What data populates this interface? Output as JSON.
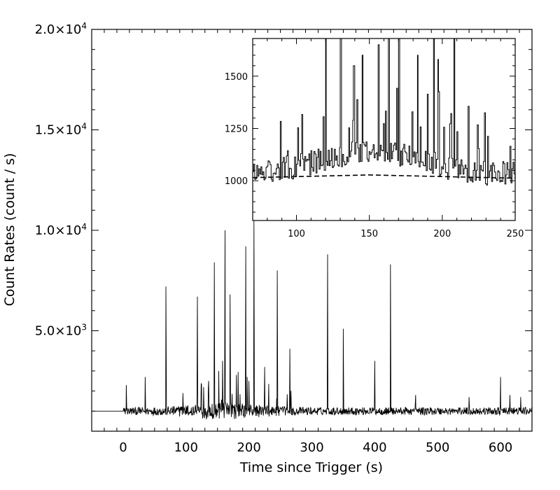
{
  "chart_data": [
    {
      "type": "line",
      "xlabel": "Time since Trigger (s)",
      "ylabel": "Count Rates (count / s)",
      "xlim": [
        -50,
        650
      ],
      "ylim": [
        0,
        20000
      ],
      "x_ticks": [
        {
          "value": 0,
          "label": "0"
        },
        {
          "value": 100,
          "label": "100"
        },
        {
          "value": 200,
          "label": "200"
        },
        {
          "value": 300,
          "label": "300"
        },
        {
          "value": 400,
          "label": "400"
        },
        {
          "value": 500,
          "label": "500"
        },
        {
          "value": 600,
          "label": "600"
        }
      ],
      "y_ticks": [
        {
          "value": 5000,
          "mant": "5.0",
          "exp": "3"
        },
        {
          "value": 10000,
          "mant": "1.0",
          "exp": "4"
        },
        {
          "value": 15000,
          "mant": "1.5",
          "exp": "4"
        },
        {
          "value": 20000,
          "mant": "2.0",
          "exp": "4"
        }
      ],
      "background_level": 1000,
      "series": [
        {
          "values_description": "light curve with background ~1000 count/s and isolated spikes",
          "spikes": [
            {
              "x": 5,
              "y": 2300
            },
            {
              "x": 35,
              "y": 2700
            },
            {
              "x": 68,
              "y": 7200
            },
            {
              "x": 95,
              "y": 1900
            },
            {
              "x": 118,
              "y": 6700
            },
            {
              "x": 128,
              "y": 2200
            },
            {
              "x": 145,
              "y": 8400
            },
            {
              "x": 152,
              "y": 3000
            },
            {
              "x": 158,
              "y": 3500
            },
            {
              "x": 162,
              "y": 10000
            },
            {
              "x": 170,
              "y": 6800
            },
            {
              "x": 180,
              "y": 2800
            },
            {
              "x": 195,
              "y": 9200
            },
            {
              "x": 200,
              "y": 2500
            },
            {
              "x": 208,
              "y": 10500
            },
            {
              "x": 225,
              "y": 3200
            },
            {
              "x": 245,
              "y": 8000
            },
            {
              "x": 265,
              "y": 4100
            },
            {
              "x": 325,
              "y": 8800
            },
            {
              "x": 350,
              "y": 5100
            },
            {
              "x": 400,
              "y": 3500
            },
            {
              "x": 425,
              "y": 8300
            },
            {
              "x": 465,
              "y": 1800
            },
            {
              "x": 550,
              "y": 1700
            },
            {
              "x": 600,
              "y": 2700
            },
            {
              "x": 615,
              "y": 1800
            },
            {
              "x": 632,
              "y": 1700
            }
          ]
        }
      ]
    },
    {
      "type": "line",
      "inset": true,
      "xlim": [
        70,
        250
      ],
      "ylim": [
        810,
        1680
      ],
      "x_ticks": [
        {
          "value": 100,
          "label": "100"
        },
        {
          "value": 150,
          "label": "150"
        },
        {
          "value": 200,
          "label": "200"
        },
        {
          "value": 250,
          "label": "250"
        }
      ],
      "y_ticks": [
        {
          "value": 1000,
          "label": "1000"
        },
        {
          "value": 1250,
          "label": "1250"
        },
        {
          "value": 1500,
          "label": "1500"
        }
      ],
      "series": [
        {
          "values_description": "zoomed light curve, 70-250 s"
        },
        {
          "values_description": "background fit (dashed)",
          "values": [
            [
              70,
              1015
            ],
            [
              150,
              1028
            ],
            [
              250,
              1012
            ]
          ]
        }
      ]
    }
  ]
}
